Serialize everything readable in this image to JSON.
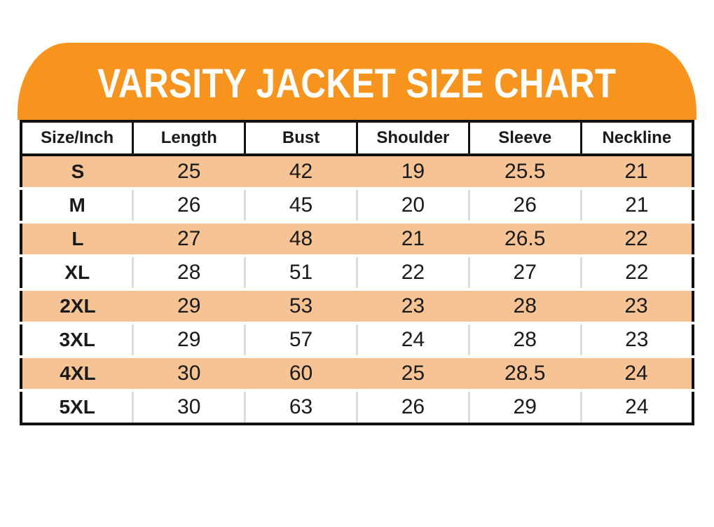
{
  "title": "VARSITY JACKET SIZE CHART",
  "colors": {
    "banner-orange": "#f7941e",
    "row-peach": "#f6c394",
    "border-black": "#111111",
    "separator-gray": "#dcdcdc",
    "title-white": "#ffffff",
    "text-black": "#1a1a1a"
  },
  "chart_data": {
    "type": "table",
    "title": "VARSITY JACKET SIZE CHART",
    "units_label": "Inch",
    "columns": [
      "Size/Inch",
      "Length",
      "Bust",
      "Shoulder",
      "Sleeve",
      "Neckline"
    ],
    "rows": [
      {
        "size": "S",
        "values": [
          25,
          42,
          19,
          25.5,
          21
        ]
      },
      {
        "size": "M",
        "values": [
          26,
          45,
          20,
          26,
          21
        ]
      },
      {
        "size": "L",
        "values": [
          27,
          48,
          21,
          26.5,
          22
        ]
      },
      {
        "size": "XL",
        "values": [
          28,
          51,
          22,
          27,
          22
        ]
      },
      {
        "size": "2XL",
        "values": [
          29,
          53,
          23,
          28,
          23
        ]
      },
      {
        "size": "3XL",
        "values": [
          29,
          57,
          24,
          28,
          23
        ]
      },
      {
        "size": "4XL",
        "values": [
          30,
          60,
          25,
          28.5,
          24
        ]
      },
      {
        "size": "5XL",
        "values": [
          30,
          63,
          26,
          29,
          24
        ]
      }
    ],
    "layout_hints": {
      "row_stripes": "alternating peach/white starting with S (peach)",
      "header_style": "white cells with black borders"
    }
  }
}
